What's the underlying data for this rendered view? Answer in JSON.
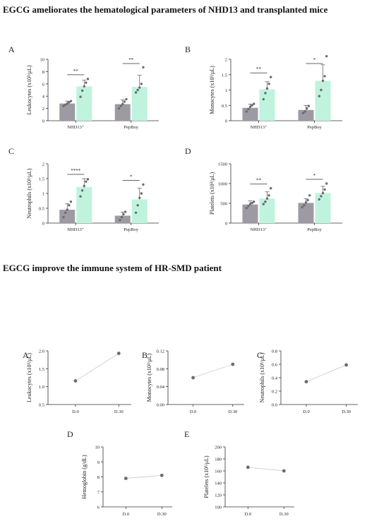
{
  "headings": {
    "top": "EGCG ameliorates the hematological parameters of NHD13 and transplanted mice",
    "bottom": "EGCG improve the immune system of HR-SMD patient"
  },
  "colors": {
    "control": "#9e9aa3",
    "egcg": "#bff3dd",
    "dots": "#6e6a70",
    "line": "#cfcfcf",
    "axis": "#333333"
  },
  "chart_data": [
    {
      "panel": "A",
      "type": "bar",
      "ylabel": "Leukocytes (x10³/μL)",
      "categories": [
        "NHD13⁺",
        "PepBoy"
      ],
      "ylim": [
        0,
        10
      ],
      "yticks": [
        0,
        2,
        4,
        6,
        8,
        10
      ],
      "series": [
        {
          "values": [
            2.8,
            2.7
          ],
          "errors": [
            0.4,
            0.7
          ],
          "points": [
            [
              2.4,
              2.6,
              2.8,
              3.0,
              3.2
            ],
            [
              2.0,
              2.4,
              2.7,
              3.1,
              3.5
            ]
          ]
        },
        {
          "values": [
            5.6,
            5.5
          ],
          "errors": [
            1.0,
            1.9
          ],
          "points": [
            [
              3.9,
              4.9,
              5.6,
              6.2,
              6.8
            ],
            [
              4.6,
              5.0,
              5.4,
              6.0,
              8.7
            ]
          ]
        }
      ],
      "significance": [
        "**",
        "**"
      ]
    },
    {
      "panel": "B",
      "type": "bar",
      "ylabel": "Monocytes (x10³/μL)",
      "categories": [
        "NHD13⁺",
        "PepBoy"
      ],
      "ylim": [
        0,
        2.0
      ],
      "yticks": [
        0,
        0.5,
        1.0,
        1.5,
        2.0
      ],
      "series": [
        {
          "values": [
            0.42,
            0.35
          ],
          "errors": [
            0.12,
            0.15
          ],
          "points": [
            [
              0.3,
              0.38,
              0.45,
              0.5,
              0.55
            ],
            [
              0.25,
              0.3,
              0.4,
              0.48
            ]
          ]
        },
        {
          "values": [
            1.02,
            1.3
          ],
          "errors": [
            0.25,
            0.52
          ],
          "points": [
            [
              0.7,
              0.9,
              1.05,
              1.2,
              1.42
            ],
            [
              0.8,
              1.0,
              1.3,
              1.45,
              2.1
            ]
          ]
        }
      ],
      "significance": [
        "**",
        "*"
      ]
    },
    {
      "panel": "C",
      "type": "bar",
      "ylabel": "Neutrophils (x10³/μL)",
      "categories": [
        "NHD13⁺",
        "PepBoy"
      ],
      "ylim": [
        0,
        2.0
      ],
      "yticks": [
        0,
        0.5,
        1.0,
        1.5,
        2.0
      ],
      "series": [
        {
          "values": [
            0.45,
            0.25
          ],
          "errors": [
            0.2,
            0.12
          ],
          "points": [
            [
              0.2,
              0.35,
              0.45,
              0.6,
              0.72
            ],
            [
              0.1,
              0.2,
              0.3,
              0.38
            ]
          ]
        },
        {
          "values": [
            1.22,
            0.8
          ],
          "errors": [
            0.28,
            0.38
          ],
          "points": [
            [
              0.9,
              1.1,
              1.25,
              1.4,
              1.48
            ],
            [
              0.35,
              0.6,
              0.85,
              1.0,
              1.3
            ]
          ]
        }
      ],
      "significance": [
        "****",
        "*"
      ]
    },
    {
      "panel": "D",
      "type": "bar",
      "ylabel": "Platelets (x10³/μL)",
      "categories": [
        "NHD13⁺",
        "PepBoy"
      ],
      "ylim": [
        0,
        1500
      ],
      "yticks": [
        0,
        500,
        1000,
        1500
      ],
      "series": [
        {
          "values": [
            470,
            510
          ],
          "errors": [
            90,
            110
          ],
          "points": [
            [
              380,
              430,
              480,
              510,
              540
            ],
            [
              400,
              450,
              520,
              580,
              700
            ]
          ]
        },
        {
          "values": [
            620,
            760
          ],
          "errors": [
            170,
            170
          ],
          "points": [
            [
              480,
              540,
              620,
              700,
              880
            ],
            [
              600,
              680,
              760,
              850,
              1000
            ]
          ]
        }
      ],
      "significance": [
        "**",
        "*"
      ]
    },
    {
      "panel": "A",
      "type": "line",
      "ylabel": "Leukocytes (x10³/μL)",
      "x": [
        "D.0",
        "D.30"
      ],
      "y": [
        1.16,
        1.93
      ],
      "ylim": [
        0.5,
        2.0
      ],
      "yticks": [
        0.5,
        1.0,
        1.5,
        2.0
      ],
      "ytick_labels": [
        "0.5",
        "1.0",
        "1.5",
        "2.0"
      ]
    },
    {
      "panel": "B",
      "type": "line",
      "ylabel": "Monocytes (x10³/μL)",
      "x": [
        "D.0",
        "D.30"
      ],
      "y": [
        0.06,
        0.09
      ],
      "ylim": [
        0,
        0.12
      ],
      "yticks": [
        0,
        0.04,
        0.08,
        0.12
      ],
      "ytick_labels": [
        "0.00",
        "0.04",
        "0.08",
        "0.12"
      ]
    },
    {
      "panel": "C",
      "type": "line",
      "ylabel": "Neutrophils (x10³/μL)",
      "x": [
        "D.0",
        "D.30"
      ],
      "y": [
        0.34,
        0.59
      ],
      "ylim": [
        0,
        0.8
      ],
      "yticks": [
        0,
        0.2,
        0.4,
        0.6,
        0.8
      ],
      "ytick_labels": [
        "0.0",
        "0.2",
        "0.4",
        "0.6",
        "0.8"
      ]
    },
    {
      "panel": "D",
      "type": "line",
      "ylabel": "Hemoglobin (g/dL)",
      "x": [
        "D.0",
        "D.30"
      ],
      "y": [
        7.9,
        8.1
      ],
      "ylim": [
        6,
        10
      ],
      "yticks": [
        6,
        7,
        8,
        9,
        10
      ],
      "ytick_labels": [
        "6",
        "7",
        "8",
        "9",
        "10"
      ]
    },
    {
      "panel": "E",
      "type": "line",
      "ylabel": "Platelets (x10³/μL)",
      "x": [
        "D.0",
        "D.30"
      ],
      "y": [
        166,
        160
      ],
      "ylim": [
        100,
        200
      ],
      "yticks": [
        100,
        120,
        140,
        160,
        180,
        200
      ],
      "ytick_labels": [
        "100",
        "120",
        "140",
        "160",
        "180",
        "200"
      ]
    }
  ]
}
